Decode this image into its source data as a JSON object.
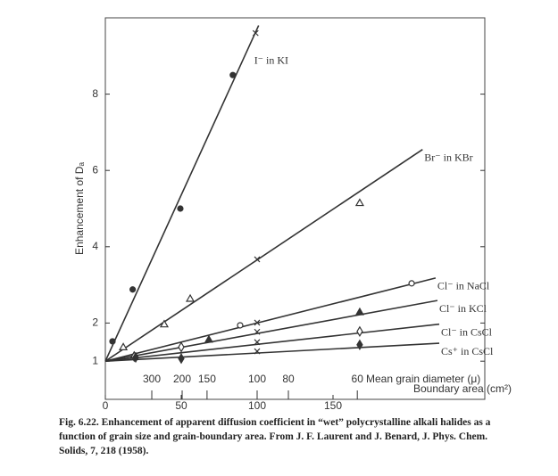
{
  "chart_data": {
    "type": "line",
    "xlabel": "Boundary area (cm²)",
    "ylabel": "Enhancement of Dₐ",
    "xlim": [
      0,
      250
    ],
    "ylim": [
      0,
      10
    ],
    "xticks": [
      0,
      50,
      100,
      150
    ],
    "yticks": [
      1,
      2,
      4,
      6,
      8
    ],
    "x2label": "Mean grain diameter (μ)",
    "x2ticks": [
      {
        "value": 30.6,
        "label": "300"
      },
      {
        "value": 50.6,
        "label": "200"
      },
      {
        "value": 67,
        "label": "150"
      },
      {
        "value": 100,
        "label": "100"
      },
      {
        "value": 120.6,
        "label": "80"
      },
      {
        "value": 166,
        "label": "60"
      }
    ],
    "color": "#333333",
    "series": [
      {
        "name": "I⁻ in KI",
        "line_x": [
          0,
          101
        ],
        "line_y": [
          1,
          9.8
        ],
        "x": [
          4.7,
          18,
          49.4,
          84,
          99
        ],
        "values": [
          1.52,
          2.88,
          5.0,
          8.5,
          9.6
        ],
        "markers": [
          "filled-circle",
          "filled-circle",
          "filled-circle",
          "filled-circle",
          "cross"
        ]
      },
      {
        "name": "Br⁻ in KBr",
        "line_x": [
          0,
          209
        ],
        "line_y": [
          1,
          6.55
        ],
        "x": [
          11.8,
          38.8,
          55.9,
          100,
          167.6
        ],
        "values": [
          1.37,
          1.97,
          2.64,
          3.67,
          5.15
        ],
        "markers": [
          "open-triangle",
          "open-triangle",
          "open-triangle",
          "cross",
          "open-triangle"
        ]
      },
      {
        "name": "Cl⁻ in NaCl",
        "line_x": [
          0,
          217.6
        ],
        "line_y": [
          1,
          3.18
        ],
        "x": [
          88.8,
          100,
          201.8
        ],
        "values": [
          1.94,
          2.01,
          3.04
        ],
        "markers": [
          "open-circle",
          "cross",
          "open-circle"
        ]
      },
      {
        "name": "Cl⁻ in KCl",
        "line_x": [
          0,
          218.8
        ],
        "line_y": [
          1,
          2.59
        ],
        "x": [
          19,
          68.2,
          100,
          167.6
        ],
        "values": [
          1.15,
          1.57,
          1.77,
          2.29
        ],
        "markers": [
          "filled-triangle",
          "filled-triangle",
          "cross",
          "filled-triangle"
        ]
      },
      {
        "name": "Cl⁻ in CsCl",
        "line_x": [
          0,
          220
        ],
        "line_y": [
          1,
          1.97
        ],
        "x": [
          19,
          50,
          100,
          167.6
        ],
        "values": [
          1.12,
          1.37,
          1.5,
          1.78
        ],
        "markers": [
          "open-diamond",
          "open-diamond",
          "cross",
          "open-diamond"
        ]
      },
      {
        "name": "Cs⁺ in CsCl",
        "line_x": [
          0,
          220
        ],
        "line_y": [
          1,
          1.47
        ],
        "x": [
          20,
          50,
          100,
          167.6
        ],
        "values": [
          1.1,
          1.07,
          1.26,
          1.43
        ],
        "markers": [
          "filled-diamond",
          "filled-diamond",
          "cross",
          "filled-diamond"
        ]
      }
    ],
    "caption": "Fig. 6.22. Enhancement of apparent diffusion coefficient in “wet” polycrystalline alkali halides as a function of grain size and grain-boundary area. From J. F. Laurent and J. Benard, J. Phys. Chem. Solids, 7, 218 (1958)."
  }
}
